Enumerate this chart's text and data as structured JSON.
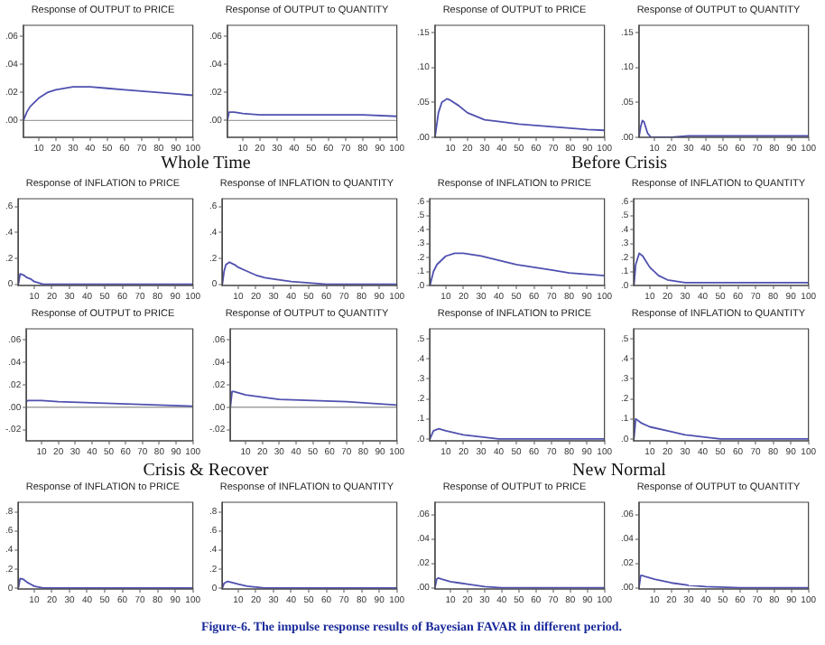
{
  "chart_data": [
    {
      "type": "line",
      "title": "Response of OUTPUT to PRICE",
      "annotations": [
        "Whole Time"
      ],
      "x": [
        1,
        3,
        5,
        10,
        15,
        20,
        30,
        40,
        50,
        60,
        70,
        80,
        90,
        100
      ],
      "values": [
        0,
        0.006,
        0.01,
        0.016,
        0.02,
        0.022,
        0.024,
        0.024,
        0.023,
        0.022,
        0.021,
        0.02,
        0.019,
        0.018
      ],
      "color": "#5050b0",
      "xlim": [
        1,
        100
      ],
      "xticks": [
        10,
        20,
        30,
        40,
        50,
        60,
        70,
        80,
        90,
        100
      ],
      "ylim": [
        -0.012,
        0.068
      ],
      "yticks": [
        {
          "value": 0,
          "label": ".00"
        },
        {
          "value": 0.02,
          "label": ".02"
        },
        {
          "value": 0.04,
          "label": ".04"
        },
        {
          "value": 0.06,
          "label": ".06"
        }
      ],
      "ref_lines": [
        {
          "axis": "y",
          "value": 0,
          "color": "#a0a0a0"
        }
      ],
      "grid": false,
      "legend": false
    },
    {
      "type": "line",
      "title": "Response of OUTPUT to QUANTITY",
      "x": [
        1,
        2,
        3,
        5,
        10,
        20,
        40,
        60,
        80,
        100
      ],
      "values": [
        0,
        0.006,
        0.006,
        0.006,
        0.005,
        0.004,
        0.004,
        0.004,
        0.004,
        0.003
      ],
      "color": "#5050b0",
      "xlim": [
        1,
        100
      ],
      "xticks": [
        10,
        20,
        30,
        40,
        50,
        60,
        70,
        80,
        90,
        100
      ],
      "ylim": [
        -0.012,
        0.068
      ],
      "yticks": [
        {
          "value": 0,
          "label": ".00"
        },
        {
          "value": 0.02,
          "label": ".02"
        },
        {
          "value": 0.04,
          "label": ".04"
        },
        {
          "value": 0.06,
          "label": ".06"
        }
      ],
      "ref_lines": [
        {
          "axis": "y",
          "value": 0,
          "color": "#a0a0a0"
        }
      ],
      "grid": false,
      "legend": false
    },
    {
      "type": "line",
      "title": "Response of OUTPUT to PRICE",
      "annotations": [
        "Before Crisis"
      ],
      "x": [
        1,
        3,
        5,
        8,
        10,
        15,
        20,
        30,
        40,
        50,
        60,
        70,
        80,
        90,
        100
      ],
      "values": [
        0,
        0.035,
        0.05,
        0.055,
        0.053,
        0.045,
        0.035,
        0.025,
        0.022,
        0.019,
        0.017,
        0.015,
        0.013,
        0.011,
        0.01
      ],
      "color": "#5050b0",
      "xlim": [
        1,
        100
      ],
      "xticks": [
        10,
        20,
        30,
        40,
        50,
        60,
        70,
        80,
        90,
        100
      ],
      "ylim": [
        0,
        0.16
      ],
      "yticks": [
        {
          "value": 0,
          "label": ".00"
        },
        {
          "value": 0.05,
          "label": ".05"
        },
        {
          "value": 0.1,
          "label": ".10"
        },
        {
          "value": 0.15,
          "label": ".15"
        }
      ],
      "grid": false,
      "legend": false
    },
    {
      "type": "line",
      "title": "Response of OUTPUT to QUANTITY",
      "x": [
        1,
        2,
        3,
        4,
        5,
        6,
        8,
        10,
        20,
        30,
        50,
        70,
        100
      ],
      "values": [
        0,
        0.015,
        0.024,
        0.022,
        0.014,
        0.006,
        0,
        0,
        0,
        0.002,
        0.002,
        0.002,
        0.002
      ],
      "color": "#5050b0",
      "xlim": [
        1,
        100
      ],
      "xticks": [
        10,
        20,
        30,
        40,
        50,
        60,
        70,
        80,
        90,
        100
      ],
      "ylim": [
        0,
        0.16
      ],
      "yticks": [
        {
          "value": 0,
          "label": ".00"
        },
        {
          "value": 0.05,
          "label": ".05"
        },
        {
          "value": 0.1,
          "label": ".10"
        },
        {
          "value": 0.15,
          "label": ".15"
        }
      ],
      "grid": false,
      "legend": false
    },
    {
      "type": "line",
      "title": "Response of INFLATION to PRICE",
      "x": [
        1,
        2,
        4,
        6,
        8,
        10,
        15,
        20,
        40,
        60,
        80,
        100
      ],
      "values": [
        0,
        0.08,
        0.07,
        0.05,
        0.04,
        0.02,
        0,
        0,
        0,
        0,
        0,
        0
      ],
      "color": "#5050b0",
      "xlim": [
        1,
        100
      ],
      "xticks": [
        10,
        20,
        30,
        40,
        50,
        60,
        70,
        80,
        90,
        100
      ],
      "ylim": [
        -0.01,
        0.66
      ],
      "yticks": [
        {
          "value": 0,
          "label": "0"
        },
        {
          "value": 0.2,
          "label": ".2"
        },
        {
          "value": 0.4,
          "label": ".4"
        },
        {
          "value": 0.6,
          "label": ".6"
        }
      ],
      "grid": false,
      "legend": false
    },
    {
      "type": "line",
      "title": "Response of INFLATION to QUANTITY",
      "x": [
        1,
        2,
        3,
        5,
        8,
        10,
        15,
        20,
        25,
        30,
        40,
        50,
        60,
        80,
        100
      ],
      "values": [
        0,
        0.1,
        0.15,
        0.17,
        0.15,
        0.13,
        0.1,
        0.07,
        0.05,
        0.04,
        0.02,
        0.01,
        0,
        0,
        0
      ],
      "color": "#5050b0",
      "xlim": [
        1,
        100
      ],
      "xticks": [
        10,
        20,
        30,
        40,
        50,
        60,
        70,
        80,
        90,
        100
      ],
      "ylim": [
        -0.01,
        0.66
      ],
      "yticks": [
        {
          "value": 0,
          "label": "0"
        },
        {
          "value": 0.2,
          "label": ".2"
        },
        {
          "value": 0.4,
          "label": ".4"
        },
        {
          "value": 0.6,
          "label": ".6"
        }
      ],
      "grid": false,
      "legend": false
    },
    {
      "type": "line",
      "title": "Response of INFLATION to PRICE",
      "x": [
        1,
        3,
        5,
        10,
        15,
        20,
        25,
        30,
        40,
        50,
        60,
        70,
        80,
        90,
        100
      ],
      "values": [
        0,
        0.1,
        0.15,
        0.21,
        0.23,
        0.23,
        0.22,
        0.21,
        0.18,
        0.15,
        0.13,
        0.11,
        0.09,
        0.08,
        0.07
      ],
      "color": "#5050b0",
      "xlim": [
        1,
        100
      ],
      "xticks": [
        10,
        20,
        30,
        40,
        50,
        60,
        70,
        80,
        90,
        100
      ],
      "ylim": [
        0,
        0.62
      ],
      "yticks": [
        {
          "value": 0,
          "label": ".0"
        },
        {
          "value": 0.1,
          "label": ".1"
        },
        {
          "value": 0.2,
          "label": ".2"
        },
        {
          "value": 0.3,
          "label": ".3"
        },
        {
          "value": 0.4,
          "label": ".4"
        },
        {
          "value": 0.5,
          "label": ".5"
        },
        {
          "value": 0.6,
          "label": ".6"
        }
      ],
      "grid": false,
      "legend": false
    },
    {
      "type": "line",
      "title": "Response of INFLATION to QUANTITY",
      "x": [
        1,
        2,
        4,
        6,
        8,
        10,
        15,
        20,
        30,
        40,
        60,
        80,
        100
      ],
      "values": [
        0,
        0.15,
        0.23,
        0.21,
        0.17,
        0.13,
        0.07,
        0.04,
        0.02,
        0.02,
        0.02,
        0.02,
        0.02
      ],
      "color": "#5050b0",
      "xlim": [
        1,
        100
      ],
      "xticks": [
        10,
        20,
        30,
        40,
        50,
        60,
        70,
        80,
        90,
        100
      ],
      "ylim": [
        0,
        0.62
      ],
      "yticks": [
        {
          "value": 0,
          "label": ".0"
        },
        {
          "value": 0.1,
          "label": ".1"
        },
        {
          "value": 0.2,
          "label": ".2"
        },
        {
          "value": 0.3,
          "label": ".3"
        },
        {
          "value": 0.4,
          "label": ".4"
        },
        {
          "value": 0.5,
          "label": ".5"
        },
        {
          "value": 0.6,
          "label": ".6"
        }
      ],
      "grid": false,
      "legend": false
    },
    {
      "type": "line",
      "title": "Response of OUTPUT to PRICE",
      "annotations": [
        "Crisis & Recover"
      ],
      "x": [
        1,
        2,
        5,
        10,
        20,
        40,
        60,
        80,
        100
      ],
      "values": [
        0.005,
        0.006,
        0.006,
        0.006,
        0.005,
        0.004,
        0.003,
        0.002,
        0.001
      ],
      "color": "#5050b0",
      "xlim": [
        1,
        100
      ],
      "xticks": [
        10,
        20,
        30,
        40,
        50,
        60,
        70,
        80,
        90,
        100
      ],
      "ylim": [
        -0.03,
        0.07
      ],
      "yticks": [
        {
          "value": -0.02,
          "label": "-.02"
        },
        {
          "value": 0,
          "label": ".00"
        },
        {
          "value": 0.02,
          "label": ".02"
        },
        {
          "value": 0.04,
          "label": ".04"
        },
        {
          "value": 0.06,
          "label": ".06"
        }
      ],
      "ref_lines": [
        {
          "axis": "y",
          "value": 0,
          "color": "#a0a0a0"
        }
      ],
      "grid": false,
      "legend": false
    },
    {
      "type": "line",
      "title": "Response of OUTPUT to QUANTITY",
      "x": [
        1,
        2,
        3,
        10,
        20,
        30,
        50,
        70,
        90,
        100
      ],
      "values": [
        0,
        0.014,
        0.014,
        0.011,
        0.009,
        0.007,
        0.006,
        0.005,
        0.003,
        0.002
      ],
      "color": "#5050b0",
      "xlim": [
        1,
        100
      ],
      "xticks": [
        10,
        20,
        30,
        40,
        50,
        60,
        70,
        80,
        90,
        100
      ],
      "ylim": [
        -0.03,
        0.07
      ],
      "yticks": [
        {
          "value": -0.02,
          "label": "-.02"
        },
        {
          "value": 0,
          "label": ".00"
        },
        {
          "value": 0.02,
          "label": ".02"
        },
        {
          "value": 0.04,
          "label": ".04"
        },
        {
          "value": 0.06,
          "label": ".06"
        }
      ],
      "ref_lines": [
        {
          "axis": "y",
          "value": 0,
          "color": "#a0a0a0"
        }
      ],
      "grid": false,
      "legend": false
    },
    {
      "type": "line",
      "title": "Response of INFLATION to PRICE",
      "annotations": [
        "New Normal"
      ],
      "x": [
        1,
        3,
        6,
        10,
        15,
        20,
        30,
        40,
        60,
        80,
        100
      ],
      "values": [
        0,
        0.04,
        0.05,
        0.04,
        0.03,
        0.02,
        0.01,
        0,
        0,
        0,
        0
      ],
      "color": "#5050b0",
      "xlim": [
        1,
        100
      ],
      "xticks": [
        10,
        20,
        30,
        40,
        50,
        60,
        70,
        80,
        90,
        100
      ],
      "ylim": [
        -0.01,
        0.55
      ],
      "yticks": [
        {
          "value": 0,
          "label": ".0"
        },
        {
          "value": 0.1,
          "label": ".1"
        },
        {
          "value": 0.2,
          "label": ".2"
        },
        {
          "value": 0.3,
          "label": ".3"
        },
        {
          "value": 0.4,
          "label": ".4"
        },
        {
          "value": 0.5,
          "label": ".5"
        }
      ],
      "grid": false,
      "legend": false
    },
    {
      "type": "line",
      "title": "Response of INFLATION to QUANTITY",
      "x": [
        1,
        2,
        5,
        10,
        20,
        30,
        40,
        50,
        60,
        80,
        100
      ],
      "values": [
        0,
        0.1,
        0.08,
        0.06,
        0.04,
        0.02,
        0.01,
        0,
        0,
        0,
        0
      ],
      "color": "#5050b0",
      "xlim": [
        1,
        100
      ],
      "xticks": [
        10,
        20,
        30,
        40,
        50,
        60,
        70,
        80,
        90,
        100
      ],
      "ylim": [
        -0.01,
        0.55
      ],
      "yticks": [
        {
          "value": 0,
          "label": ".0"
        },
        {
          "value": 0.1,
          "label": ".1"
        },
        {
          "value": 0.2,
          "label": ".2"
        },
        {
          "value": 0.3,
          "label": ".3"
        },
        {
          "value": 0.4,
          "label": ".4"
        },
        {
          "value": 0.5,
          "label": ".5"
        }
      ],
      "grid": false,
      "legend": false
    },
    {
      "type": "line",
      "title": "Response of INFLATION to PRICE",
      "x": [
        1,
        2,
        4,
        6,
        8,
        10,
        15,
        20,
        40,
        60,
        80,
        100
      ],
      "values": [
        0,
        0.1,
        0.09,
        0.06,
        0.04,
        0.02,
        0,
        0,
        0,
        0,
        0,
        0
      ],
      "color": "#5050b0",
      "xlim": [
        1,
        100
      ],
      "xticks": [
        10,
        20,
        30,
        40,
        50,
        60,
        70,
        80,
        90,
        100
      ],
      "ylim": [
        -0.01,
        0.9
      ],
      "yticks": [
        {
          "value": 0,
          "label": "0"
        },
        {
          "value": 0.2,
          "label": ".2"
        },
        {
          "value": 0.4,
          "label": ".4"
        },
        {
          "value": 0.6,
          "label": ".6"
        },
        {
          "value": 0.8,
          "label": ".8"
        }
      ],
      "grid": false,
      "legend": false
    },
    {
      "type": "line",
      "title": "Response of INFLATION to QUANTITY",
      "x": [
        1,
        2,
        4,
        6,
        10,
        15,
        20,
        25,
        40,
        60,
        100
      ],
      "values": [
        0,
        0.05,
        0.07,
        0.06,
        0.04,
        0.02,
        0.01,
        0,
        0,
        0,
        0
      ],
      "color": "#5050b0",
      "xlim": [
        1,
        100
      ],
      "xticks": [
        10,
        20,
        30,
        40,
        50,
        60,
        70,
        80,
        90,
        100
      ],
      "ylim": [
        -0.01,
        0.9
      ],
      "yticks": [
        {
          "value": 0,
          "label": "0"
        },
        {
          "value": 0.2,
          "label": ".2"
        },
        {
          "value": 0.4,
          "label": ".4"
        },
        {
          "value": 0.6,
          "label": ".6"
        },
        {
          "value": 0.8,
          "label": ".8"
        }
      ],
      "grid": false,
      "legend": false
    },
    {
      "type": "line",
      "title": "Response of OUTPUT to PRICE",
      "x": [
        1,
        2,
        3,
        5,
        10,
        15,
        20,
        30,
        40,
        60,
        80,
        100
      ],
      "values": [
        0,
        0.007,
        0.008,
        0.007,
        0.005,
        0.004,
        0.003,
        0.001,
        0,
        0,
        0,
        0
      ],
      "color": "#5050b0",
      "xlim": [
        1,
        100
      ],
      "xticks": [
        10,
        20,
        30,
        40,
        50,
        60,
        70,
        80,
        90,
        100
      ],
      "ylim": [
        -0.001,
        0.07
      ],
      "yticks": [
        {
          "value": 0,
          "label": ".00"
        },
        {
          "value": 0.02,
          "label": ".02"
        },
        {
          "value": 0.04,
          "label": ".04"
        },
        {
          "value": 0.06,
          "label": ".06"
        }
      ],
      "grid": false,
      "legend": false
    },
    {
      "type": "line",
      "title": "Response of OUTPUT to QUANTITY",
      "annotations": [
        "Figure-6. The impulse response results of Bayesian FAVAR in different period."
      ],
      "x": [
        1,
        2,
        3,
        5,
        10,
        20,
        30,
        40,
        60,
        80,
        100
      ],
      "values": [
        0,
        0.01,
        0.01,
        0.009,
        0.007,
        0.004,
        0.002,
        0.001,
        0,
        0,
        0
      ],
      "color": "#5050b0",
      "xlim": [
        1,
        100
      ],
      "xticks": [
        10,
        20,
        30,
        40,
        50,
        60,
        70,
        80,
        90,
        100
      ],
      "ylim": [
        -0.001,
        0.07
      ],
      "yticks": [
        {
          "value": 0,
          "label": ".00"
        },
        {
          "value": 0.02,
          "label": ".02"
        },
        {
          "value": 0.04,
          "label": ".04"
        },
        {
          "value": 0.06,
          "label": ".06"
        }
      ],
      "grid": false,
      "legend": false
    }
  ]
}
